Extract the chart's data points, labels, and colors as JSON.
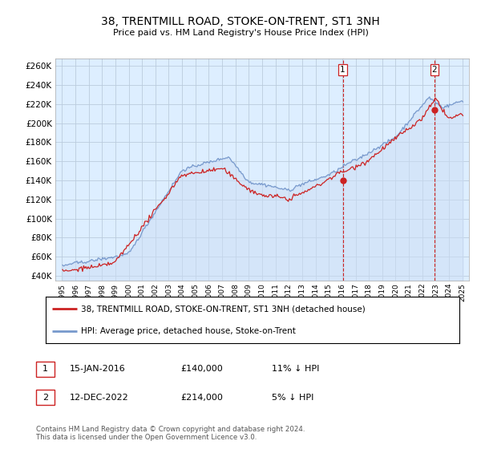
{
  "title": "38, TRENTMILL ROAD, STOKE-ON-TRENT, ST1 3NH",
  "subtitle": "Price paid vs. HM Land Registry's House Price Index (HPI)",
  "sale1_date": "15-JAN-2016",
  "sale1_price": 140000,
  "sale1_hpi_pct": "11% ↓ HPI",
  "sale2_date": "12-DEC-2022",
  "sale2_price": 214000,
  "sale2_hpi_pct": "5% ↓ HPI",
  "legend_line1": "38, TRENTMILL ROAD, STOKE-ON-TRENT, ST1 3NH (detached house)",
  "legend_line2": "HPI: Average price, detached house, Stoke-on-Trent",
  "footer": "Contains HM Land Registry data © Crown copyright and database right 2024.\nThis data is licensed under the Open Government Licence v3.0.",
  "line_color_red": "#cc2222",
  "line_color_blue": "#7799cc",
  "fill_color_blue": "#ccddf5",
  "marker_color": "#cc2222",
  "dashed_color": "#cc2222",
  "grid_color": "#bbccdd",
  "bg_color": "#ddeeff",
  "sale1_x": 2016.04,
  "sale2_x": 2022.92,
  "yticks": [
    40000,
    60000,
    80000,
    100000,
    120000,
    140000,
    160000,
    180000,
    200000,
    220000,
    240000,
    260000
  ],
  "ylim_bottom": 35000,
  "ylim_top": 268000,
  "xlim_left": 1994.5,
  "xlim_right": 2025.5,
  "xtick_years": [
    1995,
    1996,
    1997,
    1998,
    1999,
    2000,
    2001,
    2002,
    2003,
    2004,
    2005,
    2006,
    2007,
    2008,
    2009,
    2010,
    2011,
    2012,
    2013,
    2014,
    2015,
    2016,
    2017,
    2018,
    2019,
    2020,
    2021,
    2022,
    2023,
    2024,
    2025
  ]
}
